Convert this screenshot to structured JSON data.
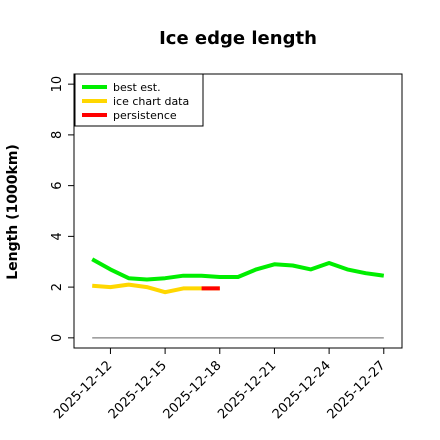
{
  "chart_data": {
    "type": "line",
    "title": "Ice edge length",
    "xlabel": "",
    "ylabel": "Length (1000km)",
    "xlim": [
      "2025-12-10",
      "2025-12-28"
    ],
    "ylim": [
      -0.4,
      10.4
    ],
    "yticks": [
      0,
      2,
      4,
      6,
      8,
      10
    ],
    "xticks": [
      "2025-12-12",
      "2025-12-15",
      "2025-12-18",
      "2025-12-21",
      "2025-12-24",
      "2025-12-27"
    ],
    "legend_position": "top-left",
    "grid": false,
    "series": [
      {
        "name": "best est.",
        "color": "#00ee00",
        "x": [
          "2025-12-11",
          "2025-12-12",
          "2025-12-13",
          "2025-12-14",
          "2025-12-15",
          "2025-12-16",
          "2025-12-17",
          "2025-12-18",
          "2025-12-19",
          "2025-12-20",
          "2025-12-21",
          "2025-12-22",
          "2025-12-23",
          "2025-12-24",
          "2025-12-25",
          "2025-12-26",
          "2025-12-27"
        ],
        "y": [
          3.1,
          2.7,
          2.35,
          2.3,
          2.35,
          2.45,
          2.45,
          2.4,
          2.4,
          2.7,
          2.9,
          2.85,
          2.7,
          2.95,
          2.7,
          2.55,
          2.45
        ]
      },
      {
        "name": "ice chart data",
        "color": "#ffd700",
        "x": [
          "2025-12-11",
          "2025-12-12",
          "2025-12-13",
          "2025-12-14",
          "2025-12-15",
          "2025-12-16",
          "2025-12-17",
          "2025-12-18"
        ],
        "y": [
          2.05,
          2.0,
          2.1,
          2.0,
          1.8,
          1.95,
          1.95,
          1.95
        ]
      },
      {
        "name": "persistence",
        "color": "#ff0000",
        "x": [
          "2025-12-17",
          "2025-12-18"
        ],
        "y": [
          1.95,
          1.95
        ]
      },
      {
        "name": "",
        "color": "#808080",
        "x": [
          "2025-12-11",
          "2025-12-27"
        ],
        "y": [
          0,
          0
        ]
      }
    ]
  }
}
